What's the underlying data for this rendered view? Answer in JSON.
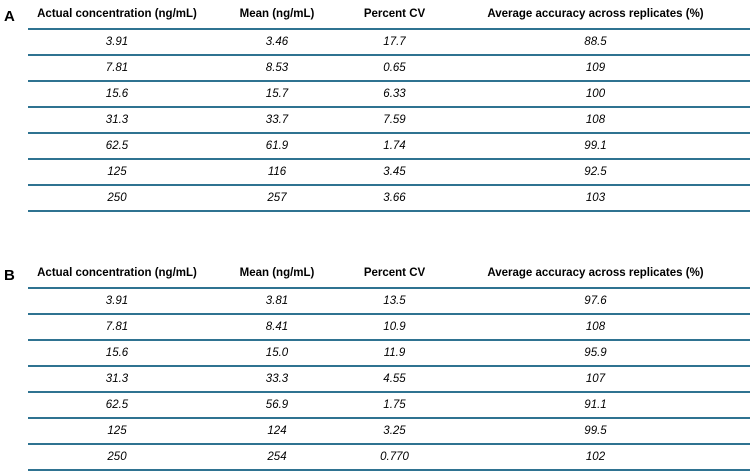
{
  "panels": [
    {
      "label": "A",
      "headers": [
        "Actual concentration (ng/mL)",
        "Mean (ng/mL)",
        "Percent CV",
        "Average accuracy across replicates (%)"
      ],
      "rows": [
        [
          "3.91",
          "3.46",
          "17.7",
          "88.5"
        ],
        [
          "7.81",
          "8.53",
          "0.65",
          "109"
        ],
        [
          "15.6",
          "15.7",
          "6.33",
          "100"
        ],
        [
          "31.3",
          "33.7",
          "7.59",
          "108"
        ],
        [
          "62.5",
          "61.9",
          "1.74",
          "99.1"
        ],
        [
          "125",
          "116",
          "3.45",
          "92.5"
        ],
        [
          "250",
          "257",
          "3.66",
          "103"
        ]
      ]
    },
    {
      "label": "B",
      "headers": [
        "Actual concentration (ng/mL)",
        "Mean (ng/mL)",
        "Percent CV",
        "Average accuracy across replicates (%)"
      ],
      "rows": [
        [
          "3.91",
          "3.81",
          "13.5",
          "97.6"
        ],
        [
          "7.81",
          "8.41",
          "10.9",
          "108"
        ],
        [
          "15.6",
          "15.0",
          "11.9",
          "95.9"
        ],
        [
          "31.3",
          "33.3",
          "4.55",
          "107"
        ],
        [
          "62.5",
          "56.9",
          "1.75",
          "91.1"
        ],
        [
          "125",
          "124",
          "3.25",
          "99.5"
        ],
        [
          "250",
          "254",
          "0.770",
          "102"
        ]
      ]
    }
  ],
  "colors": {
    "rule": "#2f7391",
    "text": "#000000"
  }
}
